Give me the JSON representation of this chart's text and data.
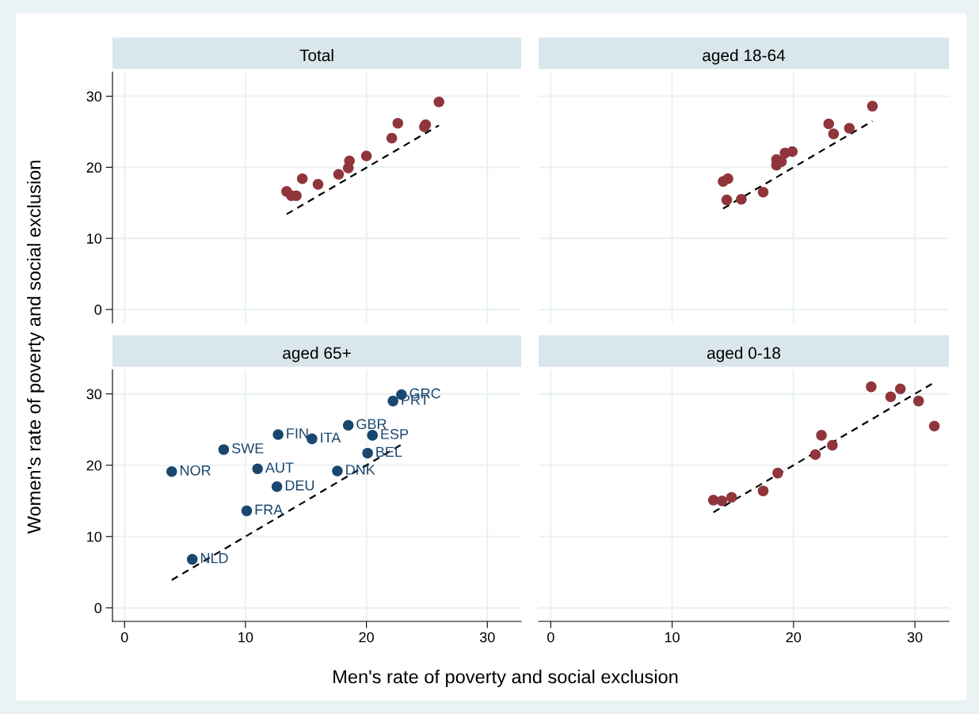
{
  "chart_data": [
    {
      "type": "scatter",
      "title": "Total",
      "ylabel": "Women's rate of poverty and social exclusion",
      "xlim": [
        -1,
        32.8
      ],
      "ylim": [
        -1.9,
        33.4
      ],
      "xticks": [
        0,
        10,
        20,
        30
      ],
      "yticks": [
        0,
        10,
        20,
        30
      ],
      "grid": true,
      "tick_labels": "y",
      "series": [
        {
          "color": "#90353b",
          "marker": "circle",
          "x": [
            13.4,
            13.8,
            14.2,
            14.7,
            16.0,
            17.7,
            18.5,
            18.6,
            20.0,
            22.1,
            22.6,
            24.8,
            24.9,
            26.0
          ],
          "values": [
            16.6,
            16.0,
            16.0,
            18.4,
            17.6,
            19.0,
            19.9,
            20.9,
            21.6,
            24.1,
            26.2,
            25.7,
            26.0,
            29.2
          ]
        },
        {
          "type": "line",
          "color": "#000000",
          "marker": "none",
          "line_style": "dashed",
          "x": [
            13.4,
            26.0
          ],
          "values": [
            13.4,
            25.9
          ]
        }
      ]
    },
    {
      "type": "scatter",
      "title": "aged 18-64",
      "xlim": [
        -1,
        32.8
      ],
      "ylim": [
        -1.9,
        33.4
      ],
      "xticks": [
        0,
        10,
        20,
        30
      ],
      "yticks": [
        0,
        10,
        20,
        30
      ],
      "grid": true,
      "tick_labels": false,
      "series": [
        {
          "color": "#90353b",
          "marker": "circle",
          "x": [
            14.2,
            14.6,
            14.5,
            15.7,
            17.5,
            18.6,
            18.6,
            19.0,
            19.3,
            19.9,
            22.9,
            23.3,
            24.6,
            26.5
          ],
          "values": [
            18.0,
            18.4,
            15.4,
            15.5,
            16.5,
            20.3,
            21.1,
            20.8,
            22.0,
            22.2,
            26.1,
            24.7,
            25.5,
            28.6
          ]
        },
        {
          "type": "line",
          "color": "#000000",
          "marker": "none",
          "line_style": "dashed",
          "x": [
            14.2,
            26.5
          ],
          "values": [
            14.2,
            26.5
          ]
        }
      ]
    },
    {
      "type": "scatter",
      "title": "aged 65+",
      "xlabel": "Men's rate of poverty and social exclusion",
      "xlim": [
        -1,
        32.8
      ],
      "ylim": [
        -1.9,
        33.4
      ],
      "xticks": [
        0,
        10,
        20,
        30
      ],
      "yticks": [
        0,
        10,
        20,
        30
      ],
      "grid": true,
      "series": [
        {
          "color": "#1a476f",
          "marker": "circle",
          "x": [
            3.9,
            8.2,
            12.7,
            15.5,
            18.5,
            20.5,
            20.1,
            22.9,
            22.2,
            11.0,
            17.6,
            12.6,
            10.1,
            5.6
          ],
          "values": [
            19.1,
            22.2,
            24.3,
            23.7,
            25.6,
            24.2,
            21.7,
            29.9,
            29.0,
            19.5,
            19.2,
            17.0,
            13.6,
            6.8
          ]
        },
        {
          "type": "line",
          "color": "#000000",
          "marker": "none",
          "line_style": "dashed",
          "x": [
            3.9,
            23.0
          ],
          "values": [
            3.9,
            23.0
          ]
        }
      ],
      "annotations": [
        {
          "text": "NOR",
          "x": 3.9,
          "y": 19.1
        },
        {
          "text": "SWE",
          "x": 8.2,
          "y": 22.2
        },
        {
          "text": "FIN",
          "x": 12.7,
          "y": 24.3
        },
        {
          "text": "ITA",
          "x": 15.5,
          "y": 23.7
        },
        {
          "text": "GBR",
          "x": 18.5,
          "y": 25.6
        },
        {
          "text": "ESP",
          "x": 20.5,
          "y": 24.2
        },
        {
          "text": "BEL",
          "x": 20.1,
          "y": 21.7
        },
        {
          "text": "GRC",
          "x": 22.9,
          "y": 29.9
        },
        {
          "text": "PRT",
          "x": 22.2,
          "y": 29.0
        },
        {
          "text": "AUT",
          "x": 11.0,
          "y": 19.5
        },
        {
          "text": "DNK",
          "x": 17.6,
          "y": 19.2
        },
        {
          "text": "DEU",
          "x": 12.6,
          "y": 17.0
        },
        {
          "text": "FRA",
          "x": 10.1,
          "y": 13.6
        },
        {
          "text": "NLD",
          "x": 5.6,
          "y": 6.8
        }
      ]
    },
    {
      "type": "scatter",
      "title": "aged 0-18",
      "xlim": [
        -1,
        32.8
      ],
      "ylim": [
        -1.9,
        33.4
      ],
      "xticks": [
        0,
        10,
        20,
        30
      ],
      "yticks": [
        0,
        10,
        20,
        30
      ],
      "grid": true,
      "tick_labels": "x",
      "series": [
        {
          "color": "#90353b",
          "marker": "circle",
          "x": [
            13.4,
            14.1,
            14.9,
            17.5,
            18.7,
            21.8,
            22.3,
            23.2,
            26.4,
            28.0,
            28.8,
            30.3,
            31.6
          ],
          "values": [
            15.1,
            15.0,
            15.5,
            16.4,
            18.9,
            21.5,
            24.2,
            22.8,
            31.0,
            29.6,
            30.7,
            29.0,
            25.5
          ]
        },
        {
          "type": "line",
          "color": "#000000",
          "marker": "none",
          "line_style": "dashed",
          "x": [
            13.4,
            31.4
          ],
          "values": [
            13.4,
            31.4
          ]
        }
      ]
    }
  ]
}
